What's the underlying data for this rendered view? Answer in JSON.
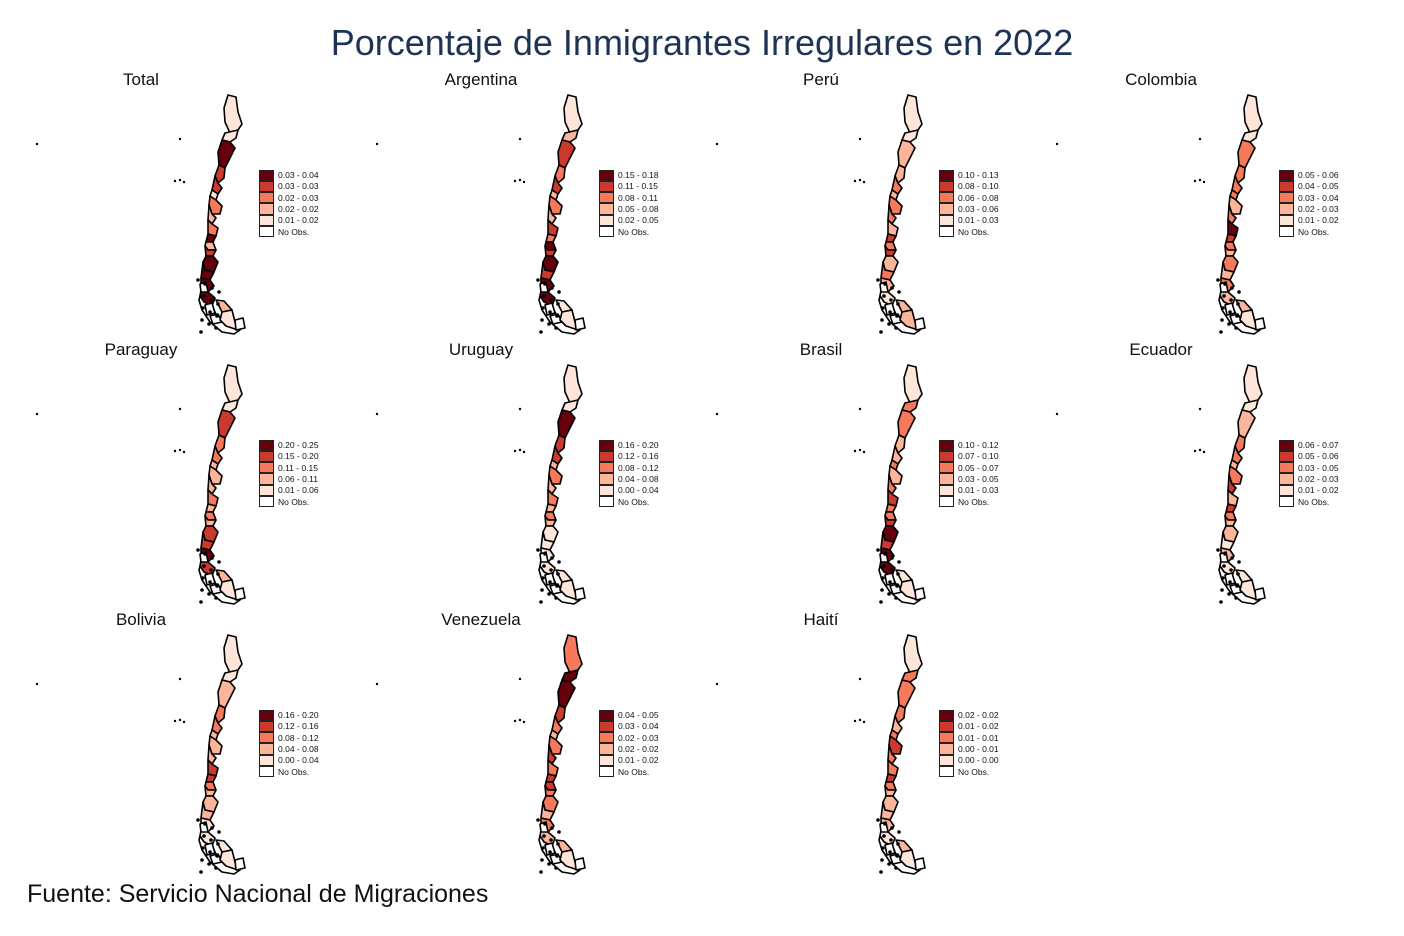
{
  "title": "Porcentaje de Inmigrantes Irregulares en 2022",
  "source": "Fuente: Servicio Nacional de Migraciones",
  "colors": {
    "scale": [
      "#67000d",
      "#cb3a2f",
      "#f7795c",
      "#fcb59a",
      "#fee5d9",
      "#ffffff"
    ],
    "outline": "#000000",
    "title": "#1f3354"
  },
  "panels": [
    {
      "name": "Total",
      "legend": [
        "0.03 - 0.04",
        "0.03 - 0.03",
        "0.02 - 0.03",
        "0.02 - 0.02",
        "0.01 - 0.02",
        "No Obs."
      ],
      "classes": [
        4,
        4,
        0,
        1,
        1,
        4,
        2,
        3,
        2,
        0,
        3,
        1,
        0,
        0,
        0,
        0,
        5,
        5,
        5,
        3,
        4,
        5,
        5
      ]
    },
    {
      "name": "Argentina",
      "legend": [
        "0.15 - 0.18",
        "0.11 - 0.15",
        "0.08 - 0.11",
        "0.05 - 0.08",
        "0.02 - 0.05",
        "No Obs."
      ],
      "classes": [
        4,
        3,
        1,
        2,
        1,
        3,
        2,
        3,
        1,
        2,
        0,
        1,
        0,
        1,
        0,
        0,
        5,
        5,
        5,
        4,
        4,
        5,
        5
      ]
    },
    {
      "name": "Perú",
      "legend": [
        "0.10 - 0.13",
        "0.08 - 0.10",
        "0.06 - 0.08",
        "0.03 - 0.06",
        "0.01 - 0.03",
        "No Obs."
      ],
      "classes": [
        4,
        4,
        3,
        3,
        2,
        3,
        2,
        2,
        3,
        1,
        2,
        1,
        3,
        2,
        3,
        4,
        5,
        5,
        5,
        3,
        3,
        5,
        5
      ]
    },
    {
      "name": "Colombia",
      "legend": [
        "0.05 - 0.06",
        "0.04 - 0.05",
        "0.03 - 0.04",
        "0.02 - 0.03",
        "0.01 - 0.02",
        "No Obs."
      ],
      "classes": [
        4,
        4,
        2,
        2,
        2,
        2,
        3,
        2,
        0,
        1,
        2,
        3,
        2,
        3,
        2,
        3,
        5,
        5,
        5,
        3,
        4,
        5,
        5
      ]
    },
    {
      "name": "Paraguay",
      "legend": [
        "0.20 - 0.25",
        "0.15 - 0.20",
        "0.11 - 0.15",
        "0.06 - 0.11",
        "0.01 - 0.06",
        "No Obs."
      ],
      "classes": [
        4,
        4,
        1,
        2,
        2,
        3,
        3,
        3,
        2,
        3,
        2,
        3,
        1,
        1,
        0,
        1,
        5,
        5,
        5,
        3,
        4,
        5,
        5
      ]
    },
    {
      "name": "Uruguay",
      "legend": [
        "0.16 - 0.20",
        "0.12 - 0.16",
        "0.08 - 0.12",
        "0.04 - 0.08",
        "0.00 - 0.04",
        "No Obs."
      ],
      "classes": [
        4,
        4,
        0,
        1,
        1,
        3,
        2,
        3,
        2,
        3,
        2,
        3,
        4,
        4,
        4,
        4,
        5,
        5,
        5,
        4,
        4,
        5,
        5
      ]
    },
    {
      "name": "Brasil",
      "legend": [
        "0.10 - 0.12",
        "0.07 - 0.10",
        "0.05 - 0.07",
        "0.03 - 0.05",
        "0.01 - 0.03",
        "No Obs."
      ],
      "classes": [
        4,
        2,
        2,
        3,
        3,
        2,
        3,
        2,
        1,
        2,
        2,
        1,
        0,
        1,
        0,
        0,
        5,
        5,
        5,
        4,
        4,
        5,
        5
      ]
    },
    {
      "name": "Ecuador",
      "legend": [
        "0.06 - 0.07",
        "0.05 - 0.06",
        "0.03 - 0.05",
        "0.02 - 0.03",
        "0.01 - 0.02",
        "No Obs."
      ],
      "classes": [
        4,
        4,
        3,
        2,
        2,
        3,
        2,
        1,
        3,
        1,
        2,
        3,
        3,
        4,
        3,
        4,
        5,
        5,
        5,
        4,
        4,
        5,
        5
      ]
    },
    {
      "name": "Bolivia",
      "legend": [
        "0.16 - 0.20",
        "0.12 - 0.16",
        "0.08 - 0.12",
        "0.04 - 0.08",
        "0.00 - 0.04",
        "No Obs."
      ],
      "classes": [
        4,
        4,
        3,
        2,
        2,
        3,
        3,
        3,
        1,
        1,
        2,
        3,
        3,
        3,
        4,
        4,
        5,
        5,
        5,
        4,
        4,
        5,
        5
      ]
    },
    {
      "name": "Venezuela",
      "legend": [
        "0.04 - 0.05",
        "0.03 - 0.04",
        "0.02 - 0.03",
        "0.02 - 0.02",
        "0.01 - 0.02",
        "No Obs."
      ],
      "classes": [
        2,
        0,
        0,
        1,
        2,
        3,
        2,
        1,
        2,
        1,
        1,
        2,
        2,
        3,
        2,
        3,
        5,
        5,
        5,
        3,
        4,
        5,
        5
      ]
    },
    {
      "name": "Haití",
      "legend": [
        "0.02 - 0.02",
        "0.01 - 0.02",
        "0.01 - 0.01",
        "0.00 - 0.01",
        "0.00 - 0.00",
        "No Obs."
      ],
      "classes": [
        4,
        2,
        2,
        2,
        3,
        2,
        1,
        2,
        2,
        1,
        2,
        3,
        3,
        3,
        3,
        4,
        5,
        5,
        5,
        3,
        4,
        5,
        5
      ]
    }
  ]
}
